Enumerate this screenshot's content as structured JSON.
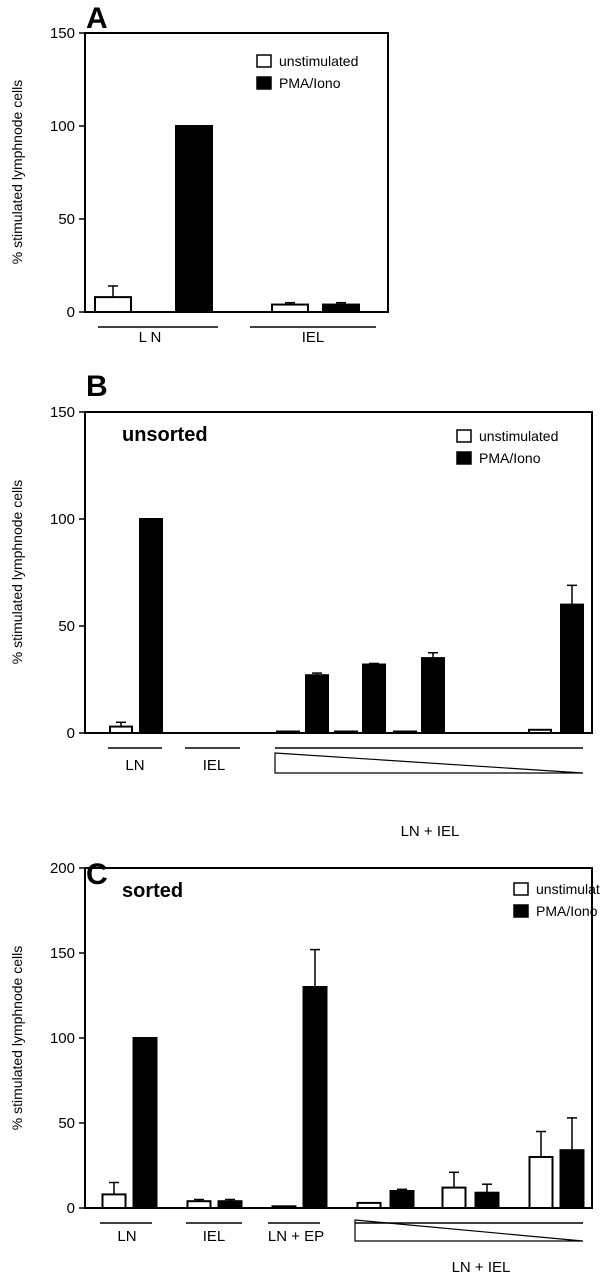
{
  "chart_data": [
    {
      "panel": "A",
      "type": "bar",
      "title": "",
      "subtitle": "",
      "ylabel": "% stimulated lymphnode cells",
      "ylim": [
        0,
        150
      ],
      "yticks": [
        "0",
        "50",
        "100",
        "150"
      ],
      "legend": {
        "position": "top-right",
        "entries": [
          "unstimulated",
          "PMA/Iono"
        ]
      },
      "series": [
        {
          "name": "unstimulated",
          "values": [
            8,
            4
          ],
          "errors": [
            6,
            1
          ]
        },
        {
          "name": "PMA/Iono",
          "values": [
            100,
            4
          ],
          "errors": [
            0,
            1
          ]
        }
      ],
      "groups": [
        "L N",
        "IEL"
      ]
    },
    {
      "panel": "B",
      "type": "bar",
      "title": "",
      "subtitle": "unsorted",
      "ylabel": "% stimulated lymphnode cells",
      "ylim": [
        0,
        150
      ],
      "yticks": [
        "0",
        "50",
        "100",
        "150"
      ],
      "legend": {
        "position": "top-right",
        "entries": [
          "unstimulated",
          "PMA/Iono"
        ]
      },
      "series": [
        {
          "name": "unstimulated",
          "values": [
            3,
            0,
            0.5,
            0.5,
            0.5,
            1.5
          ],
          "errors": [
            2,
            0,
            0,
            0,
            0,
            0
          ]
        },
        {
          "name": "PMA/Iono",
          "values": [
            100,
            0,
            27,
            32,
            35,
            60
          ],
          "errors": [
            0,
            0,
            1,
            0.5,
            2.5,
            9
          ]
        }
      ],
      "groups": [
        "LN",
        "IEL",
        "LN + IEL"
      ]
    },
    {
      "panel": "C",
      "type": "bar",
      "title": "",
      "subtitle": "sorted",
      "ylabel": "% stimulated lymphnode cells",
      "ylim": [
        0,
        200
      ],
      "yticks": [
        "0",
        "50",
        "100",
        "150",
        "200"
      ],
      "legend": {
        "position": "top-right",
        "entries": [
          "unstimulated",
          "PMA/Iono"
        ]
      },
      "series": [
        {
          "name": "unstimulated",
          "values": [
            8,
            4,
            1,
            3,
            12,
            30
          ],
          "errors": [
            7,
            1,
            0,
            0,
            9,
            15
          ]
        },
        {
          "name": "PMA/Iono",
          "values": [
            100,
            4,
            130,
            10,
            9,
            34
          ],
          "errors": [
            0,
            1,
            22,
            1,
            5,
            19
          ]
        }
      ],
      "groups": [
        "LN",
        "IEL",
        "LN + EP",
        "LN + IEL"
      ]
    }
  ]
}
